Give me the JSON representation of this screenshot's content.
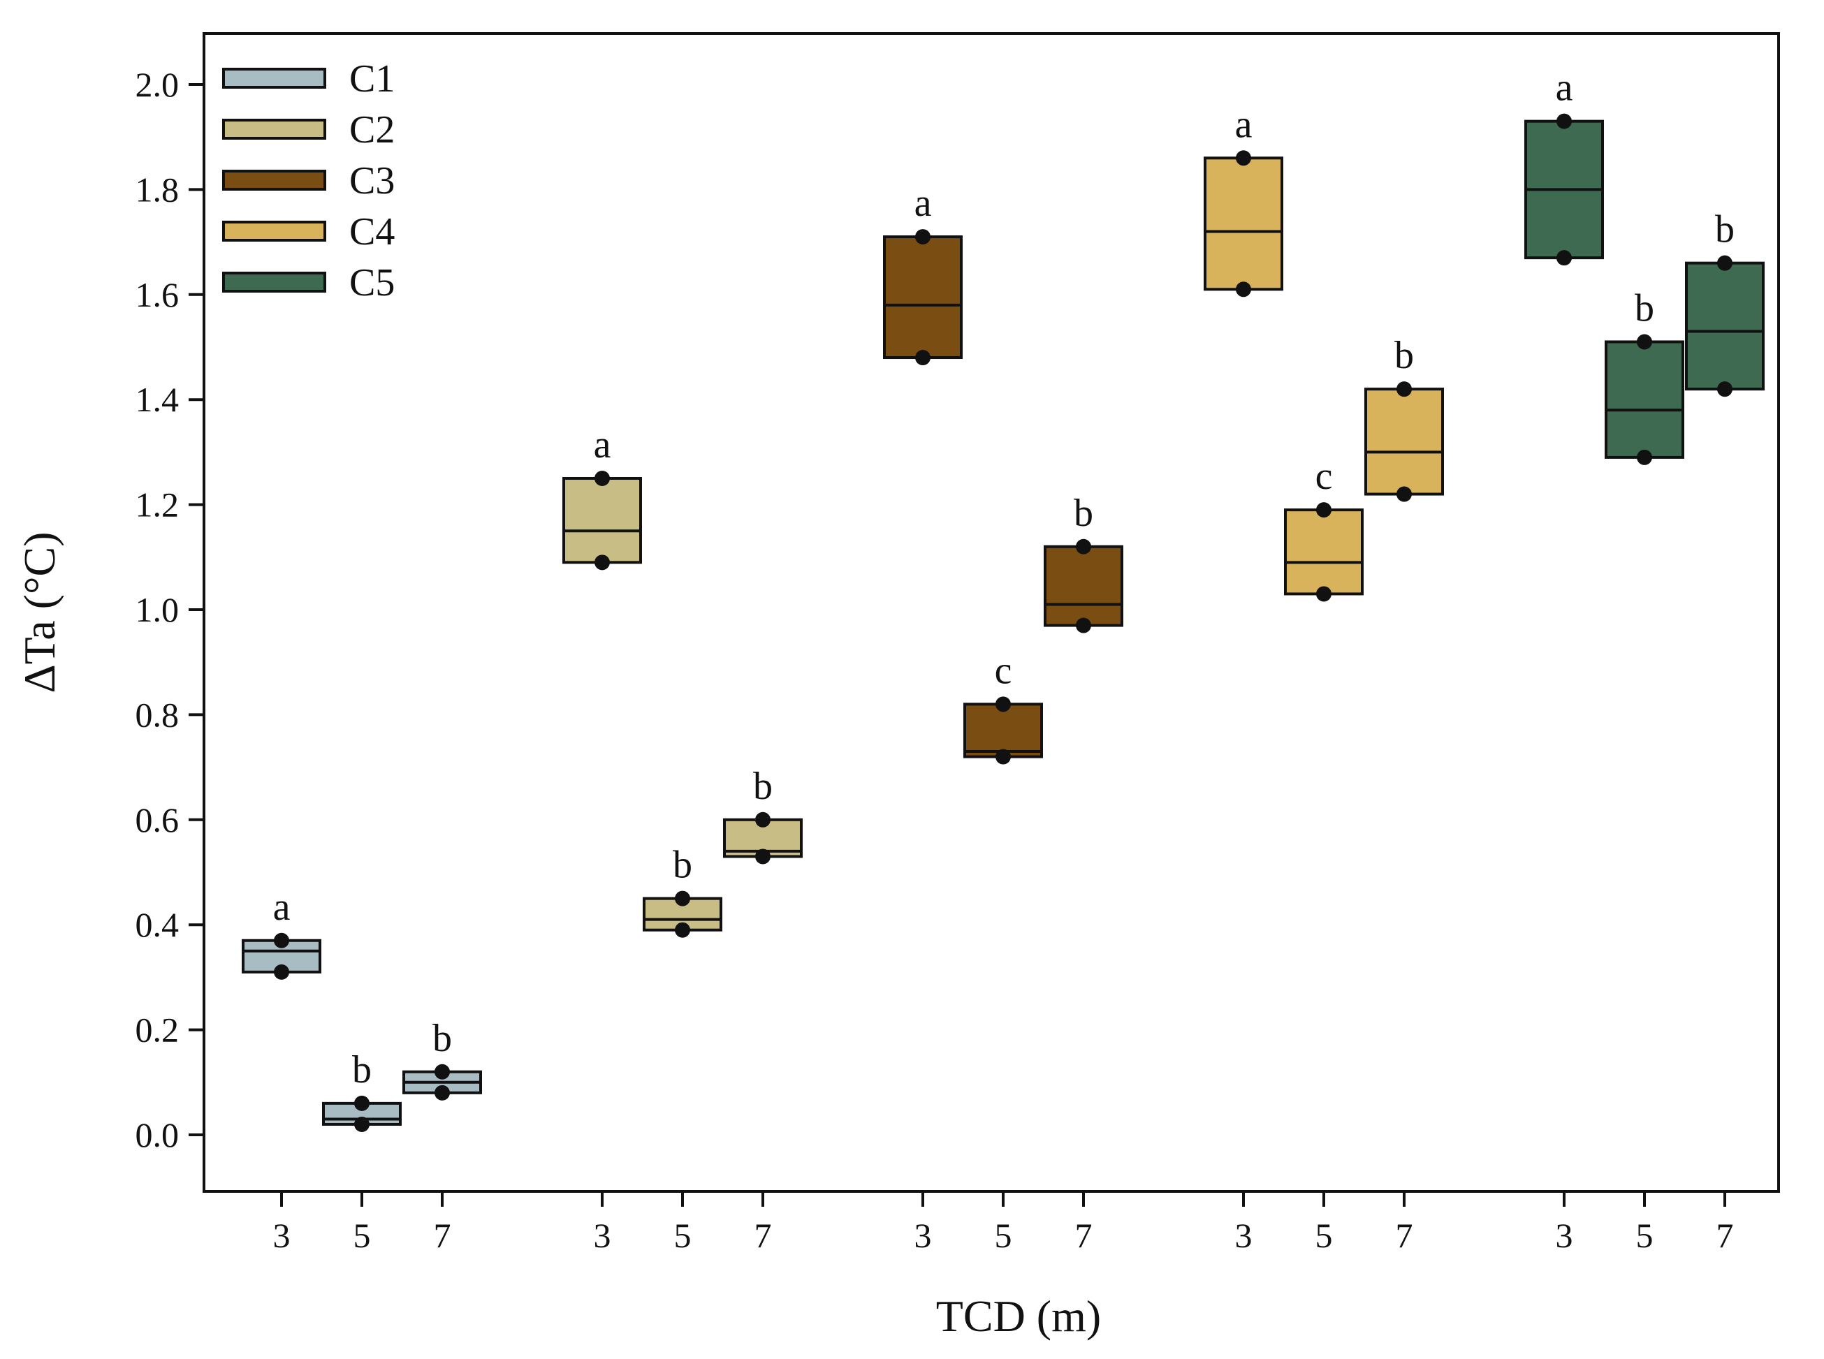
{
  "chart_data": {
    "type": "box",
    "xlabel": "TCD (m)",
    "ylabel": "ΔTa (°C)",
    "ylim": [
      -0.1,
      2.1
    ],
    "yticks": [
      "0.0",
      "0.2",
      "0.4",
      "0.6",
      "0.8",
      "1.0",
      "1.2",
      "1.4",
      "1.6",
      "1.8",
      "2.0"
    ],
    "legend_position": "top-left",
    "groups": [
      {
        "name": "C1",
        "color": "#a8bcc4",
        "boxes": [
          {
            "tcd": "3",
            "q1": 0.31,
            "median": 0.35,
            "q3": 0.37,
            "min": 0.31,
            "max": 0.37,
            "sig": "a"
          },
          {
            "tcd": "5",
            "q1": 0.02,
            "median": 0.03,
            "q3": 0.06,
            "min": 0.02,
            "max": 0.06,
            "sig": "b"
          },
          {
            "tcd": "7",
            "q1": 0.08,
            "median": 0.1,
            "q3": 0.12,
            "min": 0.08,
            "max": 0.12,
            "sig": "b"
          }
        ]
      },
      {
        "name": "C2",
        "color": "#c8bd84",
        "boxes": [
          {
            "tcd": "3",
            "q1": 1.09,
            "median": 1.15,
            "q3": 1.25,
            "min": 1.09,
            "max": 1.25,
            "sig": "a"
          },
          {
            "tcd": "5",
            "q1": 0.39,
            "median": 0.41,
            "q3": 0.45,
            "min": 0.39,
            "max": 0.45,
            "sig": "b"
          },
          {
            "tcd": "7",
            "q1": 0.53,
            "median": 0.54,
            "q3": 0.6,
            "min": 0.53,
            "max": 0.6,
            "sig": "b"
          }
        ]
      },
      {
        "name": "C3",
        "color": "#7a4e12",
        "boxes": [
          {
            "tcd": "3",
            "q1": 1.48,
            "median": 1.58,
            "q3": 1.71,
            "min": 1.48,
            "max": 1.71,
            "sig": "a"
          },
          {
            "tcd": "5",
            "q1": 0.72,
            "median": 0.73,
            "q3": 0.82,
            "min": 0.72,
            "max": 0.82,
            "sig": "c"
          },
          {
            "tcd": "7",
            "q1": 0.97,
            "median": 1.01,
            "q3": 1.12,
            "min": 0.97,
            "max": 1.12,
            "sig": "b"
          }
        ]
      },
      {
        "name": "C4",
        "color": "#d9b25c",
        "boxes": [
          {
            "tcd": "3",
            "q1": 1.61,
            "median": 1.72,
            "q3": 1.86,
            "min": 1.61,
            "max": 1.86,
            "sig": "a"
          },
          {
            "tcd": "5",
            "q1": 1.03,
            "median": 1.09,
            "q3": 1.19,
            "min": 1.03,
            "max": 1.19,
            "sig": "c"
          },
          {
            "tcd": "7",
            "q1": 1.22,
            "median": 1.3,
            "q3": 1.42,
            "min": 1.22,
            "max": 1.42,
            "sig": "b"
          }
        ]
      },
      {
        "name": "C5",
        "color": "#3e6a52",
        "boxes": [
          {
            "tcd": "3",
            "q1": 1.67,
            "median": 1.8,
            "q3": 1.93,
            "min": 1.67,
            "max": 1.93,
            "sig": "a"
          },
          {
            "tcd": "5",
            "q1": 1.29,
            "median": 1.38,
            "q3": 1.51,
            "min": 1.29,
            "max": 1.51,
            "sig": "b"
          },
          {
            "tcd": "7",
            "q1": 1.42,
            "median": 1.53,
            "q3": 1.66,
            "min": 1.42,
            "max": 1.66,
            "sig": "b"
          }
        ]
      }
    ]
  }
}
